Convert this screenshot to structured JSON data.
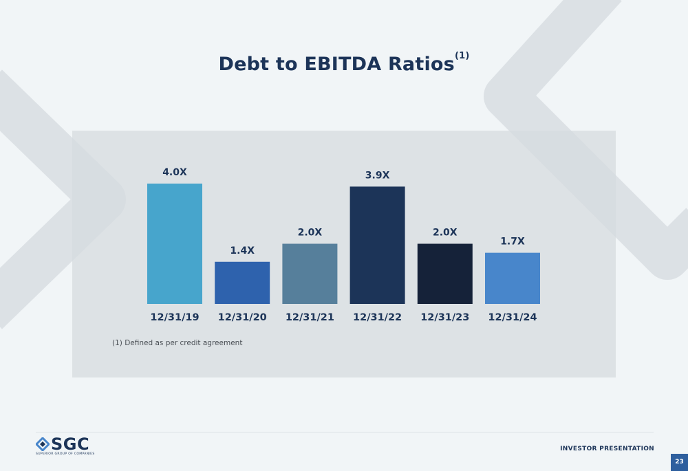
{
  "title": "Debt to EBITDA Ratios",
  "title_footnote_marker": "(1)",
  "footnote": "(1)  Defined as per credit agreement",
  "chart_data": {
    "type": "bar",
    "categories": [
      "12/31/19",
      "12/31/20",
      "12/31/21",
      "12/31/22",
      "12/31/23",
      "12/31/24"
    ],
    "values": [
      4.0,
      1.4,
      2.0,
      3.9,
      2.0,
      1.7
    ],
    "value_labels": [
      "4.0X",
      "1.4X",
      "2.0X",
      "3.9X",
      "2.0X",
      "1.7X"
    ],
    "bar_colors": [
      "#47a5cc",
      "#2e62ad",
      "#567f9b",
      "#1c3458",
      "#152239",
      "#4886cb"
    ],
    "ylim": [
      0,
      4.0
    ],
    "grid": false,
    "legend": "none",
    "xlabel": "",
    "ylabel": ""
  },
  "footer": {
    "logo_name": "SGC",
    "logo_tagline": "SUPERIOR GROUP OF COMPANIES",
    "report_label": "INVESTOR PRESENTATION",
    "page_number": "23"
  },
  "colors": {
    "background": "#f1f5f7",
    "primary_navy": "#1c3458",
    "page_badge": "#2e5f9e"
  }
}
